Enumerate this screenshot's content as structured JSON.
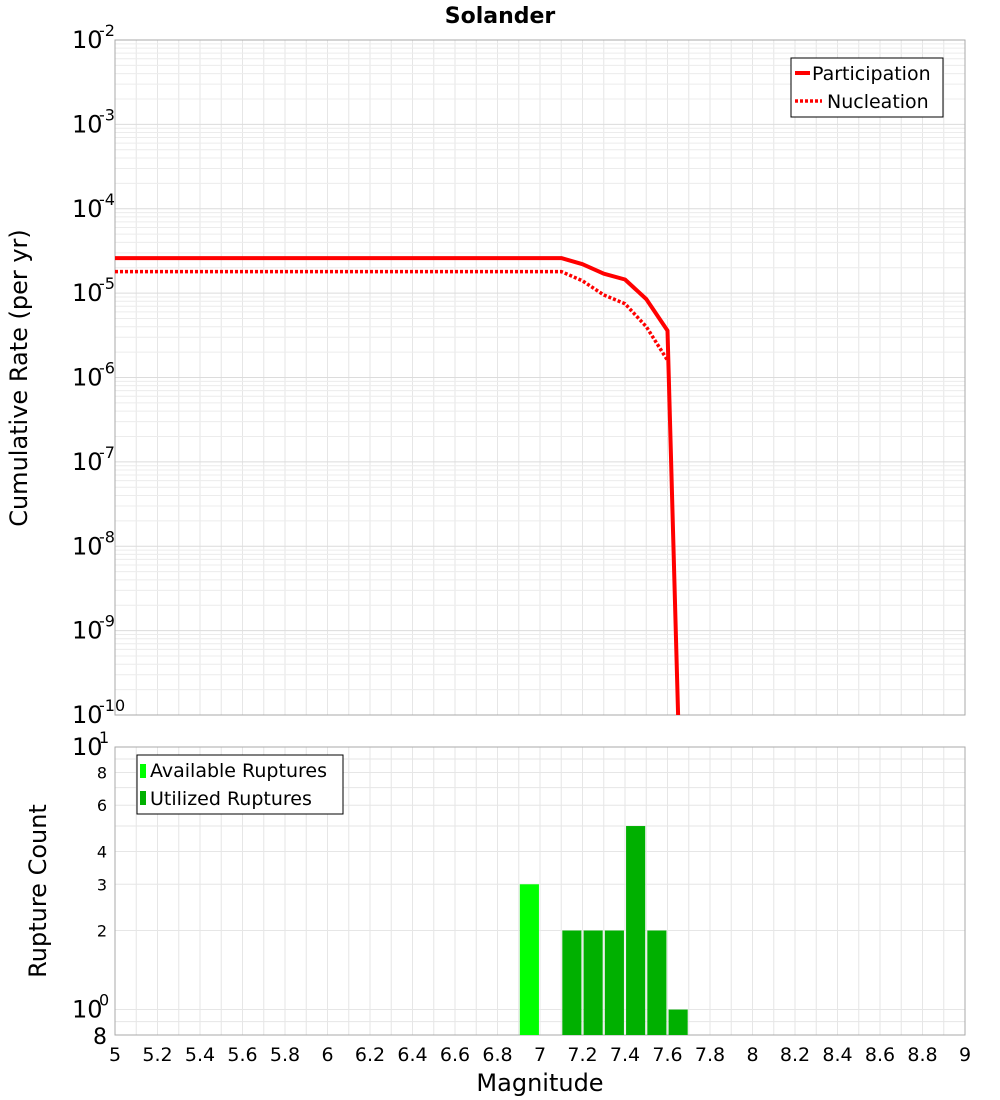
{
  "chart_data": [
    {
      "type": "line",
      "title": "Solander",
      "ylabel": "Cumulative Rate (per yr)",
      "yscale": "log",
      "xlim": [
        5,
        9
      ],
      "ylim": [
        1e-10,
        0.01
      ],
      "grid": true,
      "legend_position": "top-right",
      "ytick_labels": [
        {
          "value": 1e-10,
          "base": "10",
          "exp": "-10"
        },
        {
          "value": 1e-09,
          "base": "10",
          "exp": "-9"
        },
        {
          "value": 1e-08,
          "base": "10",
          "exp": "-8"
        },
        {
          "value": 1e-07,
          "base": "10",
          "exp": "-7"
        },
        {
          "value": 1e-06,
          "base": "10",
          "exp": "-6"
        },
        {
          "value": 1e-05,
          "base": "10",
          "exp": "-5"
        },
        {
          "value": 0.0001,
          "base": "10",
          "exp": "-4"
        },
        {
          "value": 0.001,
          "base": "10",
          "exp": "-3"
        },
        {
          "value": 0.01,
          "base": "10",
          "exp": "-2"
        }
      ],
      "series": [
        {
          "name": "Participation",
          "color": "#ff0000",
          "style": "solid",
          "x": [
            5.0,
            7.1,
            7.2,
            7.3,
            7.4,
            7.5,
            7.6,
            7.65
          ],
          "y": [
            2.6e-05,
            2.6e-05,
            2.2e-05,
            1.7e-05,
            1.45e-05,
            8.5e-06,
            3.6e-06,
            1e-10
          ]
        },
        {
          "name": "Nucleation",
          "color": "#ff0000",
          "style": "dotted",
          "x": [
            5.0,
            7.1,
            7.2,
            7.3,
            7.4,
            7.5,
            7.6
          ],
          "y": [
            1.8e-05,
            1.8e-05,
            1.4e-05,
            9.5e-06,
            7.5e-06,
            4e-06,
            1.6e-06
          ]
        }
      ]
    },
    {
      "type": "bar",
      "xlabel": "Magnitude",
      "ylabel": "Rupture Count",
      "yscale": "log",
      "xlim": [
        5,
        9
      ],
      "ylim": [
        0.8,
        10
      ],
      "grid": true,
      "legend_position": "top-left",
      "xticks": [
        "5",
        "5.2",
        "5.4",
        "5.6",
        "5.8",
        "6",
        "6.2",
        "6.4",
        "6.6",
        "6.8",
        "7",
        "7.2",
        "7.4",
        "7.6",
        "7.8",
        "8",
        "8.2",
        "8.4",
        "8.6",
        "8.8",
        "9"
      ],
      "ytick_labels": [
        {
          "value": 10,
          "base": "10",
          "exp": "1"
        },
        {
          "value": 8,
          "label": "8"
        },
        {
          "value": 6,
          "label": "6"
        },
        {
          "value": 4,
          "label": "4"
        },
        {
          "value": 3,
          "label": "3"
        },
        {
          "value": 2,
          "label": "2"
        },
        {
          "value": 1,
          "base": "10",
          "exp": "0"
        },
        {
          "value": 0.8,
          "label": "8"
        }
      ],
      "series": [
        {
          "name": "Available Ruptures",
          "color": "#00ff00",
          "x": [
            6.95
          ],
          "values": [
            3
          ]
        },
        {
          "name": "Utilized Ruptures",
          "color": "#00b000",
          "x": [
            7.15,
            7.25,
            7.35,
            7.45,
            7.55,
            7.65
          ],
          "values": [
            2,
            2,
            2,
            5,
            2,
            1
          ]
        }
      ]
    }
  ]
}
